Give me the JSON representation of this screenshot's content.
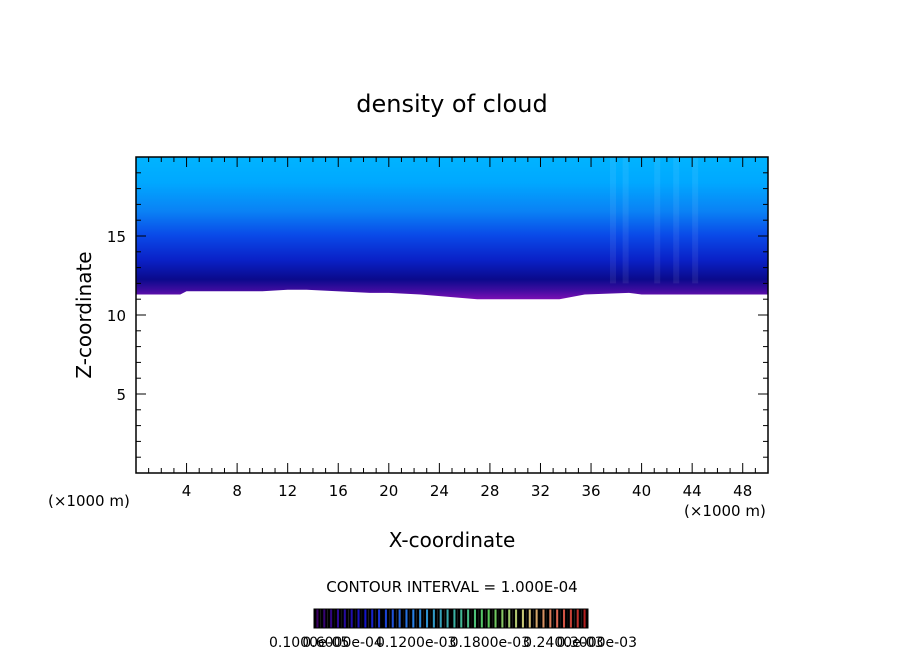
{
  "chart_data": {
    "type": "heatmap",
    "title": "density of cloud",
    "xlabel": "X-coordinate",
    "ylabel": "Z-coordinate",
    "x_unit_left": "(×1000 m)",
    "x_unit_right": "(×1000 m)",
    "xlim": [
      0,
      50
    ],
    "ylim": [
      0,
      20
    ],
    "x_ticks": [
      "4",
      "8",
      "12",
      "16",
      "20",
      "24",
      "28",
      "32",
      "36",
      "40",
      "44",
      "48"
    ],
    "x_tick_values": [
      4,
      8,
      12,
      16,
      20,
      24,
      28,
      32,
      36,
      40,
      44,
      48
    ],
    "y_ticks": [
      "5",
      "10",
      "15"
    ],
    "y_tick_values": [
      5,
      10,
      15
    ],
    "contour_interval": "CONTOUR INTERVAL = 1.000E-04",
    "colorbar_labels": [
      "0.1000e-05",
      "0.6000e-04",
      "0.1200e-03",
      "0.1800e-03",
      "0.2400e-03",
      "0.3000e-03"
    ],
    "colorbar_range": [
      1e-06,
      0.0003
    ],
    "cloud_base_profile": {
      "x": [
        0,
        3.5,
        4,
        6,
        10,
        12,
        13.5,
        18.5,
        20,
        22.5,
        27,
        33.5,
        35.5,
        39,
        40,
        50
      ],
      "z": [
        11.3,
        11.3,
        11.5,
        11.5,
        11.5,
        11.6,
        11.6,
        11.4,
        11.4,
        11.3,
        11.0,
        11.0,
        11.3,
        11.4,
        11.3,
        11.3
      ]
    },
    "cloud_top_z": 20,
    "colors": {
      "top": "#00b4ff",
      "upper": "#0a7ef5",
      "mid": "#0a3ce8",
      "dark": "#0a0a8c",
      "base": "#7a10b4"
    }
  }
}
